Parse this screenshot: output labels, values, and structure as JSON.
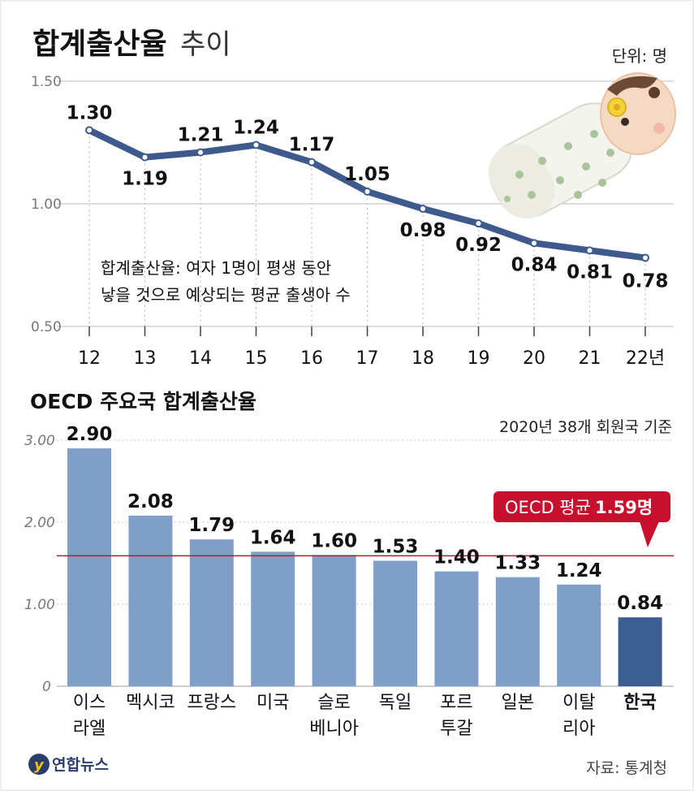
{
  "title_main": "합계출산율",
  "title_sub": "추이",
  "unit": "단위: 명",
  "note_line1": "합계출산율: 여자 1명이 평생 동안",
  "note_line2": "낳을 것으로 예상되는 평균 출생아 수",
  "section2_title": "OECD 주요국 합계출산율",
  "basis": "2020년 38개 회원국 기준",
  "oecd_avg_label": "OECD 평균",
  "oecd_avg_value": "1.59명",
  "source": "자료: 통계청",
  "logo_text": "연합뉴스",
  "colors": {
    "line": "#3e5a8c",
    "bar": "#7f9fc9",
    "bar_highlight": "#3c5e92",
    "avg_line": "#c8102e",
    "avg_box": "#c8102e"
  },
  "chart_data": [
    {
      "type": "line",
      "x_ticks": [
        "12",
        "13",
        "14",
        "15",
        "16",
        "17",
        "18",
        "19",
        "20",
        "21",
        "22년"
      ],
      "values": [
        1.3,
        1.19,
        1.21,
        1.24,
        1.17,
        1.05,
        0.98,
        0.92,
        0.84,
        0.81,
        0.78
      ],
      "data_labels": [
        "1.30",
        "1.19",
        "1.21",
        "1.24",
        "1.17",
        "1.05",
        "0.98",
        "0.92",
        "0.84",
        "0.81",
        "0.78"
      ],
      "y_ticks": [
        "1.50",
        "1.00",
        "0.50"
      ],
      "ylim": [
        0.5,
        1.5
      ],
      "grid": true
    },
    {
      "type": "bar",
      "categories": [
        [
          "이스",
          "라엘"
        ],
        [
          "멕시코"
        ],
        [
          "프랑스"
        ],
        [
          "미국"
        ],
        [
          "슬로",
          "베니아"
        ],
        [
          "독일"
        ],
        [
          "포르",
          "투갈"
        ],
        [
          "일본"
        ],
        [
          "이탈",
          "리아"
        ],
        [
          "한국"
        ]
      ],
      "values": [
        2.9,
        2.08,
        1.79,
        1.64,
        1.6,
        1.53,
        1.4,
        1.33,
        1.24,
        0.84
      ],
      "data_labels": [
        "2.90",
        "2.08",
        "1.79",
        "1.64",
        "1.60",
        "1.53",
        "1.40",
        "1.33",
        "1.24",
        "0.84"
      ],
      "highlight_index": 9,
      "y_ticks": [
        "3.00",
        "2.00",
        "1.00",
        "0"
      ],
      "ylim": [
        0,
        3.0
      ],
      "reference_line": 1.59
    }
  ]
}
